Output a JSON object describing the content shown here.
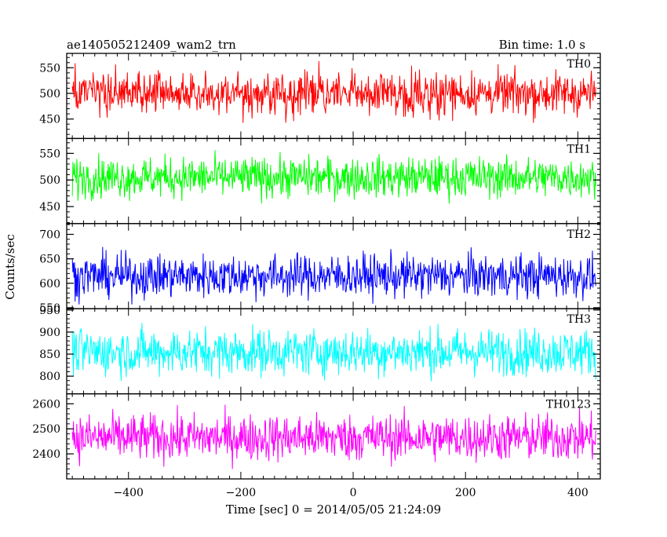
{
  "chart_data": {
    "type": "line",
    "title": "ae140505212409_wam2_trn",
    "bin_time_label": "Bin time: 1.0 s",
    "ylabel": "Counts/sec",
    "xlabel": "Time [sec] 0 = 2014/05/05 21:24:09",
    "xlim": [
      -510,
      440
    ],
    "x_range": [
      -500,
      432
    ],
    "x_ticks": [
      -400,
      -200,
      0,
      200,
      400
    ],
    "x_tick_labels": [
      "−400",
      "−200",
      "0",
      "200",
      "400"
    ],
    "panels": [
      {
        "name": "TH0",
        "color": "#ff0000",
        "ylim": [
          412,
          578
        ],
        "mean": 500,
        "spread": 72,
        "y_ticks": [
          450,
          500,
          550
        ],
        "y_tick_labels": [
          "450",
          "500",
          "550"
        ]
      },
      {
        "name": "TH1",
        "color": "#00ff00",
        "ylim": [
          418,
          578
        ],
        "mean": 505,
        "spread": 65,
        "y_ticks": [
          450,
          500,
          550
        ],
        "y_tick_labels": [
          "450",
          "500",
          "550"
        ]
      },
      {
        "name": "TH2",
        "color": "#0000ff",
        "ylim": [
          548,
          722
        ],
        "mean": 615,
        "spread": 75,
        "y_ticks": [
          550,
          600,
          650,
          700
        ],
        "y_tick_labels": [
          "550",
          "600",
          "650",
          "700"
        ]
      },
      {
        "name": "TH3",
        "color": "#00ffff",
        "ylim": [
          760,
          953
        ],
        "mean": 855,
        "spread": 90,
        "y_ticks": [
          800,
          850,
          900,
          950
        ],
        "y_tick_labels": [
          "800",
          "850",
          "900",
          "950"
        ]
      },
      {
        "name": "TH0123",
        "color": "#ff00ff",
        "ylim": [
          2300,
          2640
        ],
        "mean": 2465,
        "spread": 160,
        "y_ticks": [
          2400,
          2500,
          2600
        ],
        "y_tick_labels": [
          "2400",
          "2500",
          "2600"
        ]
      }
    ]
  }
}
